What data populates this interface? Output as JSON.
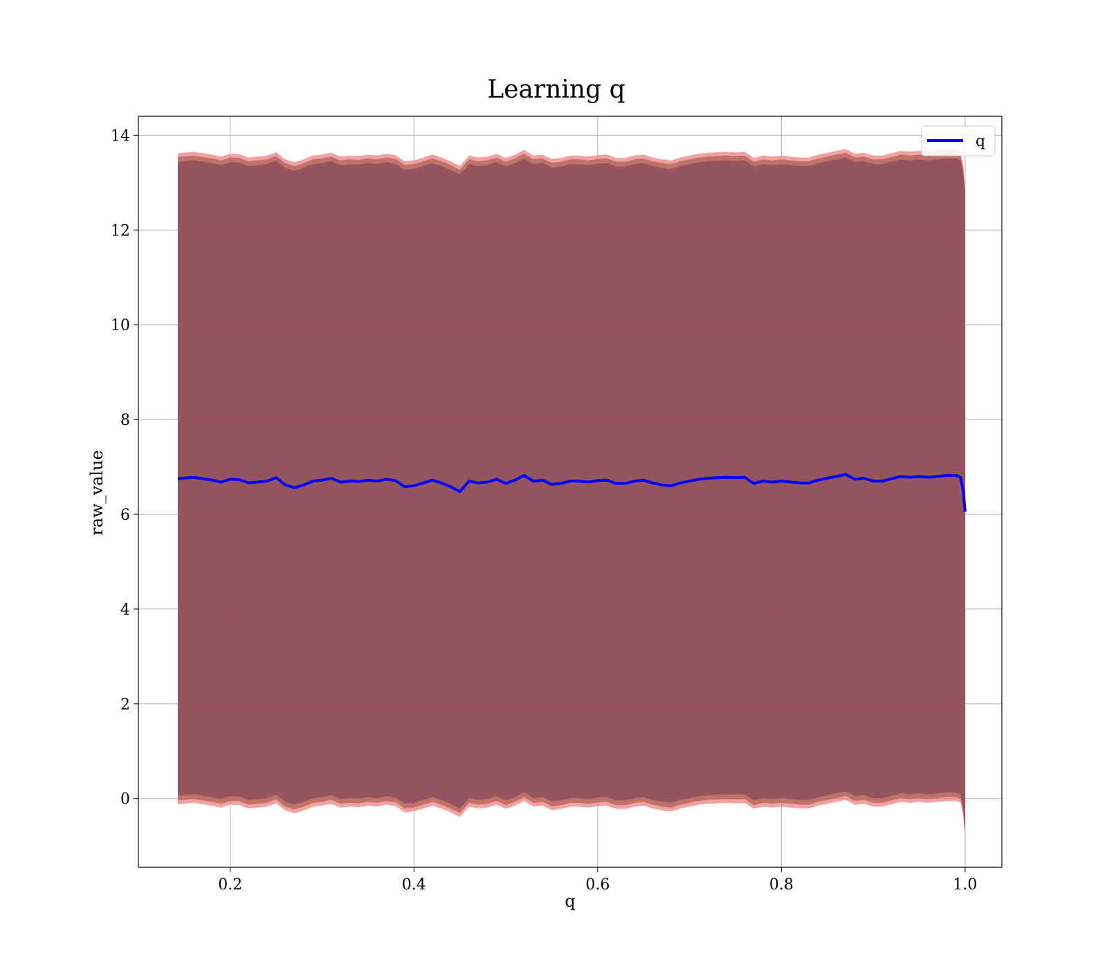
{
  "chart_data": {
    "type": "line",
    "title": "Learning q",
    "xlabel": "q",
    "ylabel": "raw_value",
    "xlim": [
      0.1,
      1.04
    ],
    "ylim": [
      -1.45,
      14.4
    ],
    "xticks": [
      {
        "value": 0.2,
        "label": "0.2"
      },
      {
        "value": 0.4,
        "label": "0.4"
      },
      {
        "value": 0.6,
        "label": "0.6"
      },
      {
        "value": 0.8,
        "label": "0.8"
      },
      {
        "value": 1.0,
        "label": "1.0"
      }
    ],
    "yticks": [
      {
        "value": 0,
        "label": "0"
      },
      {
        "value": 2,
        "label": "2"
      },
      {
        "value": 4,
        "label": "4"
      },
      {
        "value": 6,
        "label": "6"
      },
      {
        "value": 8,
        "label": "8"
      },
      {
        "value": 10,
        "label": "10"
      },
      {
        "value": 12,
        "label": "12"
      },
      {
        "value": 14,
        "label": "14"
      }
    ],
    "grid": true,
    "legend": {
      "position": "top-right",
      "entries": [
        "q"
      ]
    },
    "series": [
      {
        "name": "q",
        "color": "#0000ff",
        "x": [
          0.143,
          0.16,
          0.18,
          0.19,
          0.2,
          0.21,
          0.22,
          0.24,
          0.25,
          0.26,
          0.27,
          0.28,
          0.29,
          0.3,
          0.31,
          0.32,
          0.33,
          0.34,
          0.35,
          0.36,
          0.37,
          0.38,
          0.39,
          0.4,
          0.41,
          0.42,
          0.43,
          0.44,
          0.45,
          0.46,
          0.47,
          0.48,
          0.49,
          0.5,
          0.51,
          0.52,
          0.53,
          0.54,
          0.55,
          0.56,
          0.57,
          0.58,
          0.59,
          0.6,
          0.61,
          0.62,
          0.63,
          0.64,
          0.65,
          0.66,
          0.67,
          0.68,
          0.69,
          0.7,
          0.71,
          0.72,
          0.73,
          0.74,
          0.75,
          0.76,
          0.77,
          0.78,
          0.79,
          0.8,
          0.81,
          0.82,
          0.83,
          0.84,
          0.85,
          0.86,
          0.87,
          0.88,
          0.89,
          0.9,
          0.91,
          0.92,
          0.93,
          0.94,
          0.95,
          0.96,
          0.97,
          0.98,
          0.99,
          0.995,
          0.998,
          1.0
        ],
        "values": [
          6.75,
          6.78,
          6.72,
          6.68,
          6.74,
          6.73,
          6.66,
          6.7,
          6.77,
          6.62,
          6.56,
          6.62,
          6.7,
          6.72,
          6.76,
          6.68,
          6.7,
          6.69,
          6.72,
          6.7,
          6.74,
          6.71,
          6.58,
          6.6,
          6.66,
          6.72,
          6.66,
          6.58,
          6.48,
          6.7,
          6.66,
          6.68,
          6.74,
          6.65,
          6.72,
          6.82,
          6.7,
          6.72,
          6.63,
          6.65,
          6.7,
          6.7,
          6.68,
          6.71,
          6.72,
          6.65,
          6.65,
          6.7,
          6.72,
          6.66,
          6.62,
          6.6,
          6.66,
          6.7,
          6.74,
          6.76,
          6.77,
          6.78,
          6.77,
          6.78,
          6.65,
          6.7,
          6.68,
          6.7,
          6.68,
          6.66,
          6.66,
          6.72,
          6.76,
          6.8,
          6.84,
          6.74,
          6.76,
          6.7,
          6.7,
          6.75,
          6.8,
          6.78,
          6.8,
          6.78,
          6.8,
          6.82,
          6.82,
          6.78,
          6.5,
          6.05
        ]
      }
    ],
    "band": {
      "outer_color": "#f08080",
      "inner_color": "#8b4d5d",
      "upper_offset": 6.75,
      "lower_offset": -6.75
    }
  }
}
